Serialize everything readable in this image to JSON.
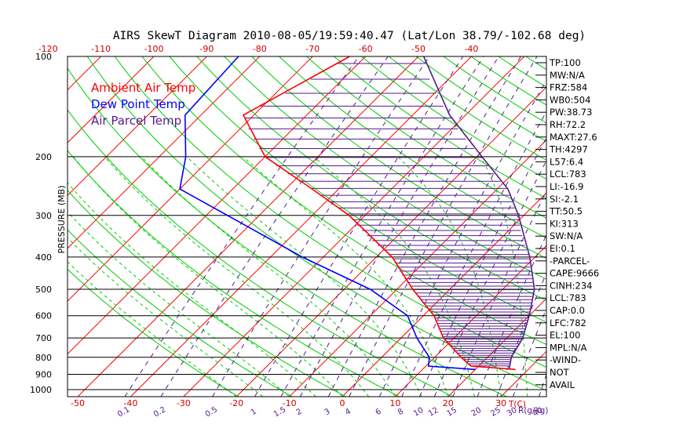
{
  "chart_data": {
    "type": "line",
    "title": "AIRS SkewT Diagram 2010-08-05/19:59:40.47 (Lat/Lon 38.79/-102.68 deg)",
    "ylabel": "PRESSURE (MB)",
    "xlabel": "T(C)",
    "mixing_ratio_unit": "R(g/kg)",
    "y_scale": "log",
    "ylim": [
      1050,
      100
    ],
    "y_ticks": [
      100,
      200,
      300,
      400,
      500,
      600,
      700,
      800,
      900,
      1000
    ],
    "x_ticks_bottom": [
      -50,
      -40,
      -30,
      -20,
      -10,
      0,
      10,
      20,
      30
    ],
    "x_ticks_top": [
      -120,
      -110,
      -100,
      -90,
      -80,
      -70,
      -60,
      -50,
      -40
    ],
    "mixing_ratio_ticks": [
      "0.1",
      "0.2",
      "0.5",
      "1",
      "1.5",
      "2",
      "3",
      "4",
      "6",
      "8",
      "10",
      "12",
      "15",
      "20",
      "25",
      "30",
      "40"
    ],
    "legend": [
      "Ambient Air Temp",
      "Dew Point Temp",
      "Air Parcel Temp"
    ],
    "legend_position": "top-left",
    "series": [
      {
        "name": "Ambient Air Temp",
        "color": "#ff0000",
        "points": [
          [
            100,
            -63
          ],
          [
            150,
            -72
          ],
          [
            200,
            -60
          ],
          [
            250,
            -45
          ],
          [
            300,
            -33
          ],
          [
            400,
            -17
          ],
          [
            500,
            -7
          ],
          [
            600,
            2
          ],
          [
            700,
            8
          ],
          [
            800,
            15
          ],
          [
            850,
            18.5
          ],
          [
            870,
            27.6
          ]
        ]
      },
      {
        "name": "Dew Point Temp",
        "color": "#0000ff",
        "points": [
          [
            100,
            -84
          ],
          [
            150,
            -83
          ],
          [
            200,
            -75
          ],
          [
            250,
            -70
          ],
          [
            300,
            -56
          ],
          [
            400,
            -34
          ],
          [
            500,
            -15
          ],
          [
            600,
            -3
          ],
          [
            700,
            3
          ],
          [
            800,
            9
          ],
          [
            850,
            10.5
          ],
          [
            870,
            20
          ]
        ]
      },
      {
        "name": "Air Parcel Temp",
        "color": "#551a8b",
        "points": [
          [
            100,
            -49
          ],
          [
            150,
            -33
          ],
          [
            200,
            -19
          ],
          [
            250,
            -8
          ],
          [
            300,
            -1
          ],
          [
            400,
            9
          ],
          [
            500,
            16
          ],
          [
            600,
            20
          ],
          [
            700,
            23
          ],
          [
            800,
            24.5
          ],
          [
            870,
            26.4
          ]
        ]
      }
    ],
    "indices_upper": [
      "TP:100",
      "MW:N/A",
      "FRZ:584",
      "WB0:504",
      "PW:38.73",
      "RH:72.2",
      "MAXT:27.6",
      "TH:4297",
      "L57:6.4",
      "LCL:783",
      "LI:-16.9",
      "SI:-2.1",
      "TT:50.5",
      "KI:313",
      "SW:N/A",
      "EI:0.1"
    ],
    "indices_parcel_header": "-PARCEL-",
    "indices_parcel": [
      "CAPE:9666",
      "CINH:234",
      "LCL:783",
      "CAP:0.0",
      "LFC:782",
      "EL:100",
      "MPL:N/A"
    ],
    "indices_wind_header": "-WIND-",
    "indices_wind": [
      "NOT",
      "AVAIL"
    ],
    "colors": {
      "isotherm": "#ff0000",
      "dry_adiabat": "#00cc00",
      "moist_adiabat": "#00cc00",
      "mixing_ratio": "#551a8b",
      "isobar": "#000000",
      "cape_hatch": "#551a8b"
    }
  }
}
